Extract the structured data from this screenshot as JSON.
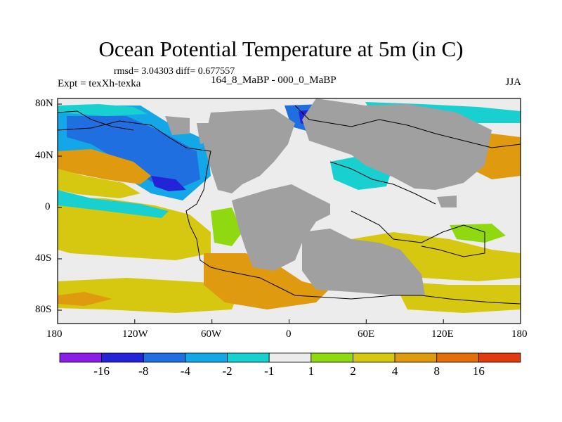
{
  "title": "Ocean Potential Temperature at 5m (in C)",
  "stats_line": "rmsd= 3.04303 diff= 0.677557",
  "experiment": "Expt = texXh-texka",
  "subtitle": "164_8_MaBP - 000_0_MaBP",
  "season": "JJA",
  "axes": {
    "lon_ticks": [
      "180",
      "120W",
      "60W",
      "0",
      "60E",
      "120E",
      "180"
    ],
    "lat_ticks": [
      "80N",
      "40N",
      "0",
      "40S",
      "80S"
    ]
  },
  "colorbar": {
    "labels": [
      "-16",
      "-8",
      "-4",
      "-2",
      "-1",
      "1",
      "2",
      "4",
      "8",
      "16"
    ],
    "colors": [
      "#8a1ee6",
      "#2323d8",
      "#1f6fe0",
      "#13a7e8",
      "#19d0d0",
      "#ececec",
      "#90d810",
      "#d6c810",
      "#e09a10",
      "#e26f0a",
      "#e03a10"
    ]
  },
  "palette": {
    "land": "#a0a0a0",
    "background": "#ececec"
  }
}
